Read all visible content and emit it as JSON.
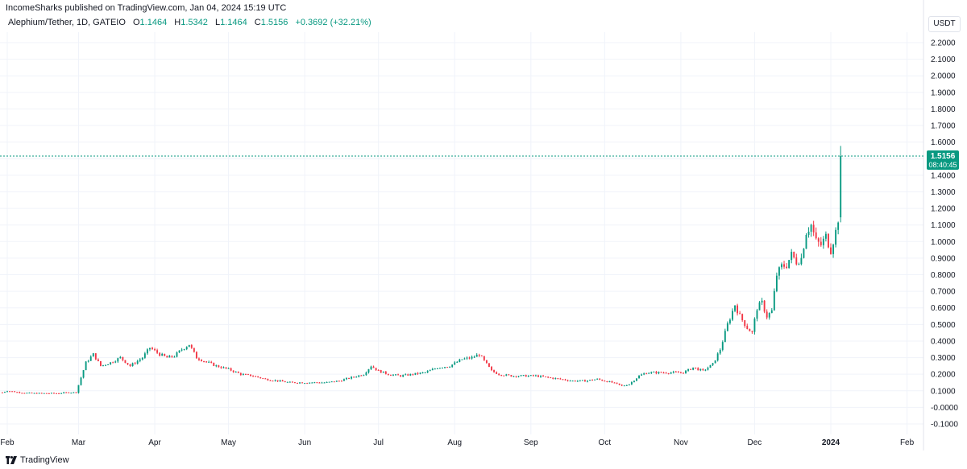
{
  "header": {
    "published_line": "IncomeSharks published on TradingView.com, Jan 04, 2024 15:19 UTC"
  },
  "legend": {
    "symbol": "Alephium/Tether, 1D, GATEIO",
    "open_label": "O",
    "open": "1.1464",
    "high_label": "H",
    "high": "1.5342",
    "low_label": "L",
    "low": "1.1464",
    "close_label": "C",
    "close": "1.5156",
    "change": "+0.3692 (+32.21%)"
  },
  "axis": {
    "currency_button": "USDT",
    "last_price": "1.5156",
    "countdown": "08:40:45"
  },
  "footer": {
    "brand": "TradingView"
  },
  "colors": {
    "up": "#089981",
    "down": "#f23645",
    "grid": "#f0f3fa",
    "price_line": "#089981"
  },
  "chart_data": {
    "type": "candlestick",
    "y_ticks": [
      "2.2000",
      "2.1000",
      "2.0000",
      "1.9000",
      "1.8000",
      "1.7000",
      "1.6000",
      "1.5000",
      "1.4000",
      "1.3000",
      "1.2000",
      "1.1000",
      "1.0000",
      "0.9000",
      "0.8000",
      "0.7000",
      "0.6000",
      "0.5000",
      "0.4000",
      "0.3000",
      "0.2000",
      "0.1000",
      "-0.0000",
      "-0.1000"
    ],
    "y_tick_values": [
      2.2,
      2.1,
      2.0,
      1.9,
      1.8,
      1.7,
      1.6,
      1.5,
      1.4,
      1.3,
      1.2,
      1.1,
      1.0,
      0.9,
      0.8,
      0.7,
      0.6,
      0.5,
      0.4,
      0.3,
      0.2,
      0.1,
      0.0,
      -0.1
    ],
    "ylim": [
      -0.14,
      2.3
    ],
    "x_ticks": [
      {
        "label": "Feb",
        "day": 0
      },
      {
        "label": "Mar",
        "day": 29
      },
      {
        "label": "Apr",
        "day": 60
      },
      {
        "label": "May",
        "day": 90
      },
      {
        "label": "Jun",
        "day": 121
      },
      {
        "label": "Jul",
        "day": 151
      },
      {
        "label": "Aug",
        "day": 182
      },
      {
        "label": "Sep",
        "day": 213
      },
      {
        "label": "Oct",
        "day": 243
      },
      {
        "label": "Nov",
        "day": 274
      },
      {
        "label": "Dec",
        "day": 304
      },
      {
        "label": "2024",
        "day": 335
      },
      {
        "label": "Feb",
        "day": 366
      }
    ],
    "last_close": 1.5156,
    "close_path": [
      [
        -2,
        0.09
      ],
      [
        0,
        0.1
      ],
      [
        5,
        0.09
      ],
      [
        10,
        0.085
      ],
      [
        15,
        0.085
      ],
      [
        20,
        0.085
      ],
      [
        25,
        0.09
      ],
      [
        28,
        0.09
      ],
      [
        30,
        0.18
      ],
      [
        32,
        0.27
      ],
      [
        35,
        0.32
      ],
      [
        38,
        0.25
      ],
      [
        42,
        0.27
      ],
      [
        46,
        0.3
      ],
      [
        50,
        0.25
      ],
      [
        55,
        0.3
      ],
      [
        58,
        0.36
      ],
      [
        62,
        0.32
      ],
      [
        65,
        0.3
      ],
      [
        68,
        0.31
      ],
      [
        71,
        0.35
      ],
      [
        74,
        0.38
      ],
      [
        77,
        0.3
      ],
      [
        80,
        0.28
      ],
      [
        85,
        0.25
      ],
      [
        90,
        0.23
      ],
      [
        95,
        0.2
      ],
      [
        100,
        0.19
      ],
      [
        105,
        0.17
      ],
      [
        110,
        0.16
      ],
      [
        115,
        0.15
      ],
      [
        120,
        0.15
      ],
      [
        125,
        0.15
      ],
      [
        130,
        0.15
      ],
      [
        135,
        0.16
      ],
      [
        140,
        0.18
      ],
      [
        145,
        0.2
      ],
      [
        148,
        0.25
      ],
      [
        151,
        0.22
      ],
      [
        155,
        0.2
      ],
      [
        160,
        0.19
      ],
      [
        165,
        0.2
      ],
      [
        170,
        0.21
      ],
      [
        175,
        0.24
      ],
      [
        180,
        0.25
      ],
      [
        185,
        0.29
      ],
      [
        189,
        0.3
      ],
      [
        192,
        0.32
      ],
      [
        194,
        0.28
      ],
      [
        197,
        0.22
      ],
      [
        200,
        0.2
      ],
      [
        205,
        0.19
      ],
      [
        210,
        0.19
      ],
      [
        215,
        0.19
      ],
      [
        220,
        0.18
      ],
      [
        225,
        0.17
      ],
      [
        230,
        0.16
      ],
      [
        235,
        0.16
      ],
      [
        240,
        0.17
      ],
      [
        243,
        0.16
      ],
      [
        246,
        0.15
      ],
      [
        250,
        0.13
      ],
      [
        253,
        0.14
      ],
      [
        257,
        0.19
      ],
      [
        260,
        0.21
      ],
      [
        265,
        0.21
      ],
      [
        270,
        0.21
      ],
      [
        275,
        0.21
      ],
      [
        279,
        0.24
      ],
      [
        283,
        0.22
      ],
      [
        287,
        0.26
      ],
      [
        290,
        0.35
      ],
      [
        293,
        0.5
      ],
      [
        296,
        0.62
      ],
      [
        298,
        0.55
      ],
      [
        301,
        0.48
      ],
      [
        303,
        0.45
      ],
      [
        305,
        0.6
      ],
      [
        307,
        0.63
      ],
      [
        309,
        0.55
      ],
      [
        311,
        0.58
      ],
      [
        313,
        0.8
      ],
      [
        315,
        0.85
      ],
      [
        317,
        0.86
      ],
      [
        319,
        0.92
      ],
      [
        321,
        0.88
      ],
      [
        323,
        0.9
      ],
      [
        325,
        1.06
      ],
      [
        327,
        1.1
      ],
      [
        329,
        1.0
      ],
      [
        331,
        0.98
      ],
      [
        333,
        1.03
      ],
      [
        335,
        0.95
      ],
      [
        337,
        1.06
      ],
      [
        338,
        1.14
      ],
      [
        339,
        1.51
      ]
    ]
  }
}
